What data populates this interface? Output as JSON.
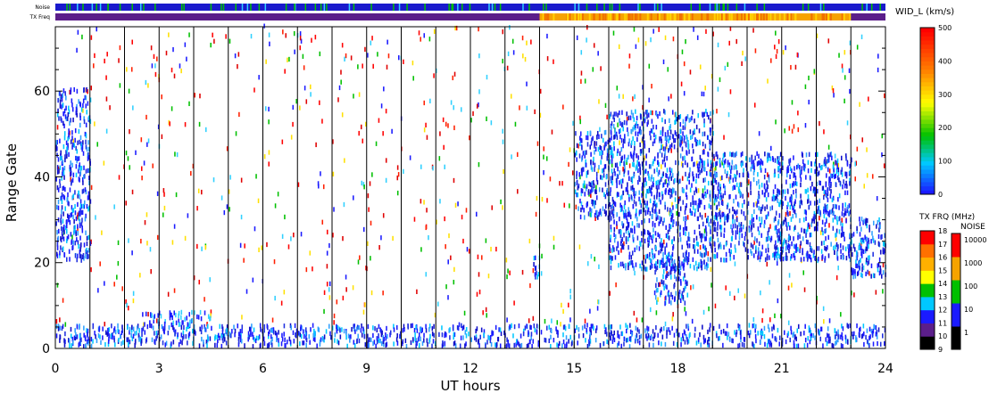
{
  "chart_data": {
    "type": "heatmap",
    "title": "",
    "xlabel": "UT hours",
    "ylabel": "Range Gate",
    "xlim": [
      0,
      24
    ],
    "ylim": [
      0,
      75
    ],
    "x_ticks": [
      "0",
      "3",
      "6",
      "9",
      "12",
      "15",
      "18",
      "21",
      "24"
    ],
    "y_ticks": [
      "0",
      "20",
      "40",
      "60"
    ],
    "top_strips": [
      {
        "name": "Noise",
        "label": "Noise"
      },
      {
        "name": "TX Freq",
        "label": "TX Freq"
      }
    ],
    "tx_freq_change_hours": [
      14.0,
      23.0
    ],
    "colorbars": [
      {
        "title": "WID_L (km/s)",
        "range": [
          0,
          500
        ],
        "ticks": [
          "0",
          "100",
          "200",
          "300",
          "400",
          "500"
        ]
      },
      {
        "title": "TX FRQ (MHz)",
        "range": [
          9,
          18
        ],
        "ticks": [
          "9",
          "10",
          "11",
          "12",
          "13",
          "14",
          "15",
          "16",
          "17",
          "18"
        ]
      },
      {
        "title": "NOISE",
        "ticks": [
          "1",
          "10",
          "100",
          "1000",
          "10000"
        ]
      }
    ],
    "scatter_regions": [
      {
        "x": [
          0.0,
          1.0
        ],
        "y": [
          20,
          60
        ],
        "level": "low"
      },
      {
        "x": [
          0.0,
          24.0
        ],
        "y": [
          0,
          5
        ],
        "level": "low"
      },
      {
        "x": [
          2.5,
          4.5
        ],
        "y": [
          5,
          8
        ],
        "level": "low-mid"
      },
      {
        "x": [
          13.8,
          14.0
        ],
        "y": [
          15,
          22
        ],
        "level": "low"
      },
      {
        "x": [
          15.0,
          16.0
        ],
        "y": [
          30,
          50
        ],
        "level": "low"
      },
      {
        "x": [
          16.0,
          19.0
        ],
        "y": [
          18,
          55
        ],
        "level": "low"
      },
      {
        "x": [
          17.3,
          18.3
        ],
        "y": [
          10,
          22
        ],
        "level": "low"
      },
      {
        "x": [
          19.0,
          23.0
        ],
        "y": [
          20,
          45
        ],
        "level": "low"
      },
      {
        "x": [
          23.0,
          24.0
        ],
        "y": [
          16,
          30
        ],
        "level": "low"
      }
    ]
  }
}
